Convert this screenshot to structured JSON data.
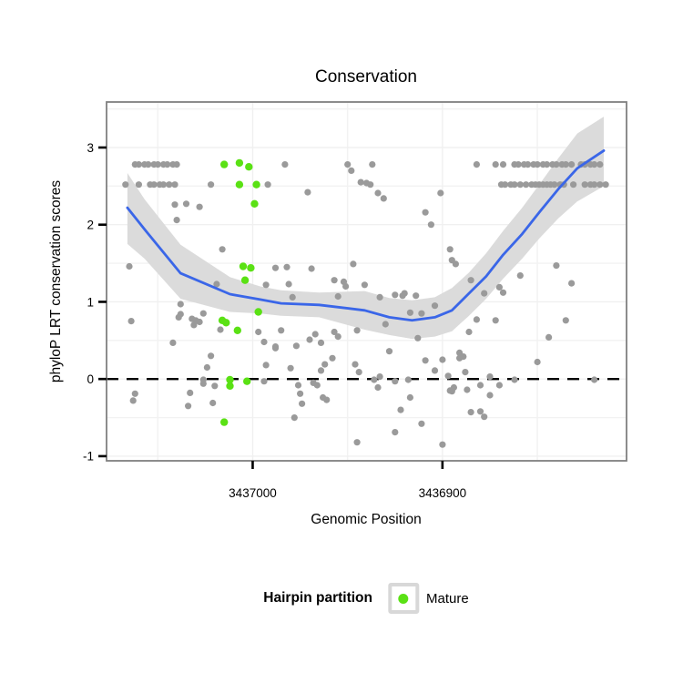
{
  "figure": {
    "title": "Conservation"
  },
  "axes": {
    "x_label": "Genomic Position",
    "y_label": "phyloP LRT conservation scores"
  },
  "legend": {
    "title": "Hairpin partition",
    "items": [
      {
        "label": "Mature",
        "color": "#5AE114"
      }
    ]
  },
  "colors": {
    "point_gray": "#9A9A9A",
    "point_mature": "#5AE114",
    "smooth_line": "#3A66E8",
    "confidence_band": "#DBDBDB",
    "panel_border": "#808080",
    "grid_major": "#F0F0F0",
    "grid_minor": "#F2F2F2",
    "reference_line": "#000000",
    "tick": "#000000"
  },
  "chart_data": {
    "type": "scatter",
    "title": "Conservation",
    "xlabel": "Genomic Position",
    "ylabel": "phyloP LRT conservation scores",
    "x_axis_reversed": true,
    "xlim": [
      3437077,
      3436803
    ],
    "ylim": [
      -1.06,
      3.59
    ],
    "x_ticks": [
      {
        "value": 3437000,
        "label": "3437000"
      },
      {
        "value": 3436900,
        "label": "3436900"
      }
    ],
    "x_minor_ticks": [
      3437050,
      3436950,
      3436850
    ],
    "y_ticks": [
      {
        "value": 3,
        "label": "3"
      },
      {
        "value": 2,
        "label": "2"
      },
      {
        "value": 1,
        "label": "1"
      },
      {
        "value": 0,
        "label": "0"
      },
      {
        "value": -1,
        "label": "-1"
      }
    ],
    "y_minor_ticks": [
      -0.5,
      0.5,
      1.5,
      2.5,
      3.5
    ],
    "reference_line": {
      "y": 0,
      "style": "dashed"
    },
    "series": [
      {
        "name": "Other",
        "role": "points",
        "color": "#9A9A9A",
        "points": [
          [
            3437062,
            2.78
          ],
          [
            3437060,
            2.78
          ],
          [
            3437057,
            2.78
          ],
          [
            3437055,
            2.78
          ],
          [
            3437052,
            2.78
          ],
          [
            3437050,
            2.78
          ],
          [
            3437047,
            2.78
          ],
          [
            3437045,
            2.78
          ],
          [
            3437042,
            2.78
          ],
          [
            3437040,
            2.78
          ],
          [
            3436983,
            2.78
          ],
          [
            3436950,
            2.78
          ],
          [
            3436948,
            2.7
          ],
          [
            3436937,
            2.78
          ],
          [
            3436882,
            2.78
          ],
          [
            3436872,
            2.78
          ],
          [
            3436868,
            2.78
          ],
          [
            3436862,
            2.78
          ],
          [
            3436860,
            2.78
          ],
          [
            3436857,
            2.78
          ],
          [
            3436855,
            2.78
          ],
          [
            3436852,
            2.78
          ],
          [
            3436850,
            2.78
          ],
          [
            3436847,
            2.78
          ],
          [
            3436845,
            2.78
          ],
          [
            3436842,
            2.78
          ],
          [
            3436840,
            2.78
          ],
          [
            3436837,
            2.78
          ],
          [
            3436835,
            2.78
          ],
          [
            3436832,
            2.78
          ],
          [
            3436827,
            2.78
          ],
          [
            3436825,
            2.78
          ],
          [
            3436822,
            2.78
          ],
          [
            3436820,
            2.78
          ],
          [
            3436817,
            2.78
          ],
          [
            3437067,
            2.52
          ],
          [
            3437060,
            2.52
          ],
          [
            3437054,
            2.52
          ],
          [
            3437052,
            2.52
          ],
          [
            3437049,
            2.52
          ],
          [
            3437047,
            2.52
          ],
          [
            3437044,
            2.52
          ],
          [
            3437041,
            2.52
          ],
          [
            3437022,
            2.52
          ],
          [
            3436992,
            2.52
          ],
          [
            3436971,
            2.42
          ],
          [
            3436943,
            2.55
          ],
          [
            3436940,
            2.54
          ],
          [
            3436938,
            2.52
          ],
          [
            3436934,
            2.41
          ],
          [
            3436931,
            2.34
          ],
          [
            3436901,
            2.41
          ],
          [
            3436869,
            2.52
          ],
          [
            3436867,
            2.52
          ],
          [
            3436864,
            2.52
          ],
          [
            3436862,
            2.52
          ],
          [
            3436859,
            2.52
          ],
          [
            3436856,
            2.52
          ],
          [
            3436853,
            2.52
          ],
          [
            3436851,
            2.52
          ],
          [
            3436849,
            2.52
          ],
          [
            3436847,
            2.52
          ],
          [
            3436845,
            2.52
          ],
          [
            3436843,
            2.52
          ],
          [
            3436841,
            2.52
          ],
          [
            3436838,
            2.52
          ],
          [
            3436836,
            2.52
          ],
          [
            3436831,
            2.52
          ],
          [
            3436825,
            2.52
          ],
          [
            3436822,
            2.52
          ],
          [
            3436820,
            2.52
          ],
          [
            3436817,
            2.52
          ],
          [
            3436814,
            2.52
          ],
          [
            3437065,
            1.46
          ],
          [
            3437041,
            2.26
          ],
          [
            3437040,
            2.06
          ],
          [
            3437035,
            2.27
          ],
          [
            3437028,
            2.23
          ],
          [
            3437016,
            1.68
          ],
          [
            3437019,
            1.23
          ],
          [
            3436993,
            1.22
          ],
          [
            3436988,
            1.44
          ],
          [
            3436982,
            1.45
          ],
          [
            3436981,
            1.23
          ],
          [
            3436969,
            1.43
          ],
          [
            3436957,
            1.28
          ],
          [
            3436952,
            1.26
          ],
          [
            3436951,
            1.2
          ],
          [
            3436947,
            1.49
          ],
          [
            3436941,
            1.22
          ],
          [
            3436909,
            2.16
          ],
          [
            3436906,
            2.0
          ],
          [
            3436896,
            1.68
          ],
          [
            3436895,
            1.54
          ],
          [
            3436893,
            1.49
          ],
          [
            3436885,
            1.28
          ],
          [
            3436878,
            1.11
          ],
          [
            3436870,
            1.19
          ],
          [
            3436868,
            1.12
          ],
          [
            3436859,
            1.34
          ],
          [
            3436840,
            1.47
          ],
          [
            3436832,
            1.24
          ],
          [
            3436979,
            1.06
          ],
          [
            3436955,
            1.07
          ],
          [
            3436933,
            1.06
          ],
          [
            3436925,
            1.09
          ],
          [
            3436921,
            1.08
          ],
          [
            3436920,
            1.11
          ],
          [
            3436914,
            1.08
          ],
          [
            3436930,
            0.71
          ],
          [
            3436917,
            0.86
          ],
          [
            3436913,
            0.53
          ],
          [
            3436911,
            0.85
          ],
          [
            3436904,
            0.95
          ],
          [
            3437064,
            0.75
          ],
          [
            3437038,
            0.97
          ],
          [
            3437038,
            0.84
          ],
          [
            3437039,
            0.8
          ],
          [
            3437032,
            0.78
          ],
          [
            3437030,
            0.76
          ],
          [
            3437028,
            0.74
          ],
          [
            3437031,
            0.7
          ],
          [
            3437026,
            0.85
          ],
          [
            3437042,
            0.47
          ],
          [
            3437017,
            0.64
          ],
          [
            3436997,
            0.61
          ],
          [
            3436994,
            0.48
          ],
          [
            3436988,
            0.42
          ],
          [
            3437022,
            0.3
          ],
          [
            3437024,
            0.15
          ],
          [
            3437026,
            -0.01
          ],
          [
            3437026,
            -0.06
          ],
          [
            3437020,
            -0.09
          ],
          [
            3437033,
            -0.18
          ],
          [
            3437062,
            -0.19
          ],
          [
            3437063,
            -0.28
          ],
          [
            3437034,
            -0.35
          ],
          [
            3437021,
            -0.31
          ],
          [
            3436993,
            0.18
          ],
          [
            3436994,
            -0.03
          ],
          [
            3436985,
            0.63
          ],
          [
            3436988,
            0.4
          ],
          [
            3436977,
            0.43
          ],
          [
            3436970,
            0.51
          ],
          [
            3436967,
            0.58
          ],
          [
            3436964,
            0.47
          ],
          [
            3436957,
            0.61
          ],
          [
            3436955,
            0.55
          ],
          [
            3436980,
            0.14
          ],
          [
            3436964,
            0.11
          ],
          [
            3436962,
            0.19
          ],
          [
            3436958,
            0.27
          ],
          [
            3436976,
            -0.08
          ],
          [
            3436975,
            -0.19
          ],
          [
            3436974,
            -0.32
          ],
          [
            3436968,
            -0.05
          ],
          [
            3436966,
            -0.08
          ],
          [
            3436963,
            -0.24
          ],
          [
            3436961,
            -0.27
          ],
          [
            3436978,
            -0.5
          ],
          [
            3436945,
            0.63
          ],
          [
            3436946,
            0.19
          ],
          [
            3436944,
            0.09
          ],
          [
            3436936,
            -0.01
          ],
          [
            3436934,
            -0.11
          ],
          [
            3436933,
            0.03
          ],
          [
            3436928,
            0.36
          ],
          [
            3436925,
            -0.03
          ],
          [
            3436922,
            -0.4
          ],
          [
            3436918,
            -0.01
          ],
          [
            3436917,
            -0.24
          ],
          [
            3436911,
            -0.58
          ],
          [
            3436925,
            -0.69
          ],
          [
            3436909,
            0.24
          ],
          [
            3436904,
            0.11
          ],
          [
            3436900,
            0.25
          ],
          [
            3436897,
            0.04
          ],
          [
            3436896,
            -0.15
          ],
          [
            3436900,
            -0.85
          ],
          [
            3436945,
            -0.82
          ],
          [
            3436882,
            0.77
          ],
          [
            3436872,
            0.76
          ],
          [
            3436886,
            0.61
          ],
          [
            3436891,
            0.34
          ],
          [
            3436889,
            0.29
          ],
          [
            3436891,
            0.27
          ],
          [
            3436888,
            0.09
          ],
          [
            3436875,
            0.03
          ],
          [
            3436894,
            -0.11
          ],
          [
            3436895,
            -0.16
          ],
          [
            3436887,
            -0.14
          ],
          [
            3436880,
            -0.08
          ],
          [
            3436870,
            -0.08
          ],
          [
            3436875,
            -0.21
          ],
          [
            3436885,
            -0.43
          ],
          [
            3436880,
            -0.42
          ],
          [
            3436878,
            -0.49
          ],
          [
            3436862,
            -0.01
          ],
          [
            3436850,
            0.22
          ],
          [
            3436844,
            0.54
          ],
          [
            3436835,
            0.76
          ],
          [
            3436820,
            -0.01
          ]
        ]
      },
      {
        "name": "Mature",
        "role": "points",
        "color": "#5AE114",
        "points": [
          [
            3437015,
            2.78
          ],
          [
            3437007,
            2.8
          ],
          [
            3437002,
            2.75
          ],
          [
            3437007,
            2.52
          ],
          [
            3436998,
            2.52
          ],
          [
            3436999,
            2.27
          ],
          [
            3437005,
            1.46
          ],
          [
            3437001,
            1.44
          ],
          [
            3437004,
            1.28
          ],
          [
            3437016,
            0.76
          ],
          [
            3437014,
            0.73
          ],
          [
            3437008,
            0.63
          ],
          [
            3436997,
            0.87
          ],
          [
            3437012,
            -0.01
          ],
          [
            3437012,
            -0.09
          ],
          [
            3437003,
            -0.03
          ],
          [
            3437015,
            -0.56
          ]
        ]
      }
    ],
    "smooth": {
      "name": "loess smooth",
      "color": "#3A66E8",
      "band_color": "#DBDBDB",
      "line": [
        [
          3437066,
          2.22
        ],
        [
          3437057,
          1.94
        ],
        [
          3437038,
          1.37
        ],
        [
          3437012,
          1.1
        ],
        [
          3436996,
          1.03
        ],
        [
          3436985,
          0.98
        ],
        [
          3436965,
          0.96
        ],
        [
          3436941,
          0.89
        ],
        [
          3436928,
          0.8
        ],
        [
          3436916,
          0.76
        ],
        [
          3436904,
          0.8
        ],
        [
          3436895,
          0.89
        ],
        [
          3436886,
          1.11
        ],
        [
          3436877,
          1.33
        ],
        [
          3436868,
          1.61
        ],
        [
          3436858,
          1.88
        ],
        [
          3436849,
          2.16
        ],
        [
          3436839,
          2.46
        ],
        [
          3436829,
          2.73
        ],
        [
          3436815,
          2.96
        ]
      ],
      "band": [
        [
          3437066,
          1.75,
          2.67
        ],
        [
          3437057,
          1.56,
          2.33
        ],
        [
          3437038,
          1.04,
          1.74
        ],
        [
          3437012,
          0.87,
          1.32
        ],
        [
          3436996,
          0.85,
          1.2
        ],
        [
          3436985,
          0.82,
          1.15
        ],
        [
          3436965,
          0.8,
          1.12
        ],
        [
          3436941,
          0.64,
          1.14
        ],
        [
          3436928,
          0.57,
          1.05
        ],
        [
          3436916,
          0.52,
          1.02
        ],
        [
          3436904,
          0.55,
          1.06
        ],
        [
          3436895,
          0.62,
          1.18
        ],
        [
          3436886,
          0.82,
          1.38
        ],
        [
          3436877,
          1.04,
          1.63
        ],
        [
          3436868,
          1.3,
          1.92
        ],
        [
          3436858,
          1.56,
          2.22
        ],
        [
          3436849,
          1.82,
          2.52
        ],
        [
          3436839,
          2.08,
          2.86
        ],
        [
          3436829,
          2.3,
          3.18
        ],
        [
          3436815,
          2.5,
          3.4
        ]
      ]
    }
  }
}
